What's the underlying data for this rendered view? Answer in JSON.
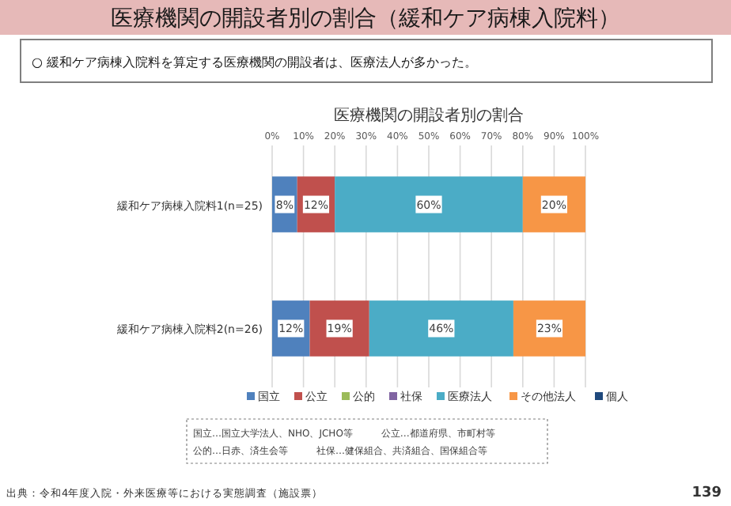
{
  "chart_data": {
    "type": "bar",
    "orientation": "horizontal",
    "stacked": true,
    "title": "医療機関の開設者別の割合（緩和ケア病棟入院料）",
    "subtitle": "○ 緩和ケア病棟入院料を算定する医療機関の開設者は、医療法人が多かった。",
    "annotations": [
      "医療機関の開設者別の割合",
      "国立…国立大学法人、NHO、JCHO等　　　公立…都道府県、市町村等",
      "公的…日赤、済生会等　　　社保…健保組合、共済組合、国保組合等",
      "出典：令和4年度入院・外来医療等における実態調査（施設票）",
      "139"
    ],
    "categories": [
      "緩和ケア病棟入院料1(n=25)",
      "緩和ケア病棟入院料2(n=26)"
    ],
    "series": [
      {
        "name": "国立",
        "color": "#4f81bd",
        "values": [
          8,
          12
        ],
        "value_labels": [
          "8%",
          "12%"
        ]
      },
      {
        "name": "公立",
        "color": "#c0504d",
        "values": [
          12,
          19
        ],
        "value_labels": [
          "12%",
          "19%"
        ]
      },
      {
        "name": "公的",
        "color": "#9bbb59",
        "values": [
          0,
          0
        ],
        "value_labels": [
          null,
          null
        ]
      },
      {
        "name": "社保",
        "color": "#8064a2",
        "values": [
          0,
          0
        ],
        "value_labels": [
          null,
          null
        ]
      },
      {
        "name": "医療法人",
        "color": "#4bacc6",
        "values": [
          60,
          46
        ],
        "value_labels": [
          "60%",
          "46%"
        ]
      },
      {
        "name": "その他法人",
        "color": "#f79646",
        "values": [
          20,
          23
        ],
        "value_labels": [
          "20%",
          "23%"
        ]
      },
      {
        "name": "個人",
        "color": "#1f497d",
        "values": [
          0,
          0
        ],
        "value_labels": [
          null,
          null
        ]
      }
    ],
    "xlim": [
      0,
      100
    ],
    "xticks": [
      {
        "value": 0,
        "label": "0%"
      },
      {
        "value": 10,
        "label": "10%"
      },
      {
        "value": 20,
        "label": "20%"
      },
      {
        "value": 30,
        "label": "30%"
      },
      {
        "value": 40,
        "label": "40%"
      },
      {
        "value": 50,
        "label": "50%"
      },
      {
        "value": 60,
        "label": "60%"
      },
      {
        "value": 70,
        "label": "70%"
      },
      {
        "value": 80,
        "label": "80%"
      },
      {
        "value": 90,
        "label": "90%"
      },
      {
        "value": 100,
        "label": "100%"
      }
    ],
    "grid": "x",
    "legend": "bottom"
  }
}
